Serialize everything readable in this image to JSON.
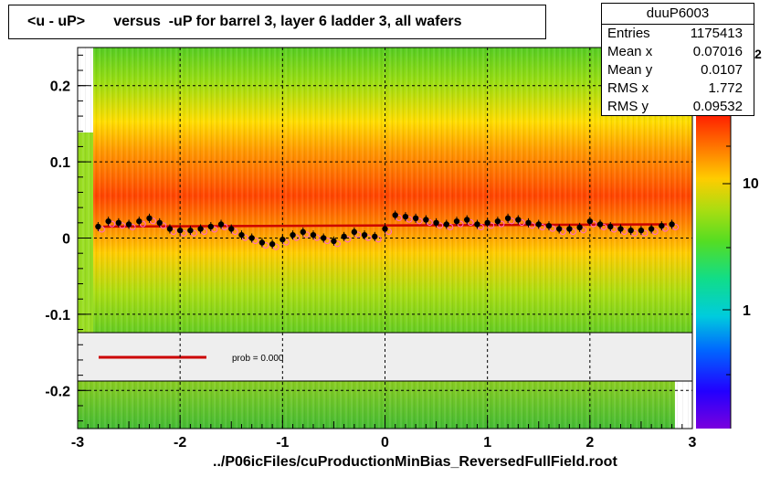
{
  "title": "<u - uP>       versus  -uP for barrel 3, layer 6 ladder 3, all wafers",
  "footer": "../P06icFiles/cuProductionMinBias_ReversedFullField.root",
  "stats": {
    "name": "duuP6003",
    "rows": [
      {
        "label": "Entries",
        "value": "1175413"
      },
      {
        "label": "Mean x",
        "value": "0.07016"
      },
      {
        "label": "Mean y",
        "value": "0.0107"
      },
      {
        "label": "RMS x",
        "value": "1.772"
      },
      {
        "label": "RMS y",
        "value": "0.09532"
      }
    ]
  },
  "colorbar": {
    "tick_labels": [
      "10",
      "1"
    ],
    "exponent_fragment": "2"
  },
  "colors": {
    "fit_line": "#cc0000",
    "profile_marker": "#000000",
    "open_marker": "#ff66cc"
  },
  "chart_data": {
    "type": "heatmap",
    "title": "<u - uP>       versus  -uP for barrel 3, layer 6 ladder 3, all wafers",
    "xlabel": "",
    "ylabel": "",
    "xlim": [
      -3,
      3
    ],
    "ylim": [
      -0.25,
      0.25
    ],
    "x_ticks": [
      "-3",
      "-2",
      "-1",
      "0",
      "1",
      "2",
      "3"
    ],
    "y_ticks": [
      "-0.2",
      "-0.1",
      "0",
      "0.1",
      "0.2"
    ],
    "grid": true,
    "colorscale": "log",
    "legend": {
      "entry": "prob = 0.000",
      "placement": "inside-lower"
    },
    "series": [
      {
        "kind": "profile",
        "x": [
          -2.8,
          -2.7,
          -2.6,
          -2.5,
          -2.4,
          -2.3,
          -2.2,
          -2.1,
          -2.0,
          -1.9,
          -1.8,
          -1.7,
          -1.6,
          -1.5,
          -1.4,
          -1.3,
          -1.2,
          -1.1,
          -1.0,
          -0.9,
          -0.8,
          -0.7,
          -0.6,
          -0.5,
          -0.4,
          -0.3,
          -0.2,
          -0.1,
          0.0,
          0.1,
          0.2,
          0.3,
          0.4,
          0.5,
          0.6,
          0.7,
          0.8,
          0.9,
          1.0,
          1.1,
          1.2,
          1.3,
          1.4,
          1.5,
          1.6,
          1.7,
          1.8,
          1.9,
          2.0,
          2.1,
          2.2,
          2.3,
          2.4,
          2.5,
          2.6,
          2.7,
          2.8
        ],
        "y": [
          0.015,
          0.022,
          0.02,
          0.018,
          0.022,
          0.026,
          0.02,
          0.012,
          0.01,
          0.01,
          0.012,
          0.015,
          0.018,
          0.012,
          0.004,
          0.0,
          -0.006,
          -0.008,
          -0.002,
          0.004,
          0.008,
          0.004,
          0.0,
          -0.004,
          0.002,
          0.008,
          0.004,
          0.002,
          0.012,
          0.03,
          0.028,
          0.026,
          0.024,
          0.02,
          0.018,
          0.022,
          0.024,
          0.018,
          0.02,
          0.022,
          0.026,
          0.024,
          0.02,
          0.018,
          0.016,
          0.012,
          0.012,
          0.014,
          0.022,
          0.018,
          0.015,
          0.012,
          0.01,
          0.01,
          0.012,
          0.016,
          0.018
        ]
      },
      {
        "kind": "fit",
        "x": [
          -2.75,
          2.75
        ],
        "y": [
          0.015,
          0.018
        ]
      }
    ]
  }
}
